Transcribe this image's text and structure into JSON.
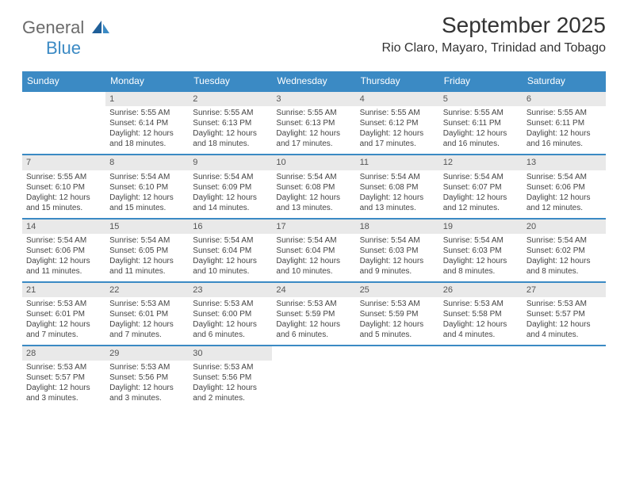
{
  "logo": {
    "part1": "General",
    "part2": "Blue"
  },
  "title": "September 2025",
  "subtitle": "Rio Claro, Mayaro, Trinidad and Tobago",
  "colors": {
    "header_bg": "#3b8ac4",
    "header_text": "#ffffff",
    "date_bg": "#e9e9e9",
    "text": "#333333",
    "logo_gray": "#6b6b6b",
    "logo_blue": "#3b8ac4"
  },
  "day_names": [
    "Sunday",
    "Monday",
    "Tuesday",
    "Wednesday",
    "Thursday",
    "Friday",
    "Saturday"
  ],
  "weeks": [
    [
      {
        "date": "",
        "sunrise": "",
        "sunset": "",
        "daylight": ""
      },
      {
        "date": "1",
        "sunrise": "Sunrise: 5:55 AM",
        "sunset": "Sunset: 6:14 PM",
        "daylight": "Daylight: 12 hours and 18 minutes."
      },
      {
        "date": "2",
        "sunrise": "Sunrise: 5:55 AM",
        "sunset": "Sunset: 6:13 PM",
        "daylight": "Daylight: 12 hours and 18 minutes."
      },
      {
        "date": "3",
        "sunrise": "Sunrise: 5:55 AM",
        "sunset": "Sunset: 6:13 PM",
        "daylight": "Daylight: 12 hours and 17 minutes."
      },
      {
        "date": "4",
        "sunrise": "Sunrise: 5:55 AM",
        "sunset": "Sunset: 6:12 PM",
        "daylight": "Daylight: 12 hours and 17 minutes."
      },
      {
        "date": "5",
        "sunrise": "Sunrise: 5:55 AM",
        "sunset": "Sunset: 6:11 PM",
        "daylight": "Daylight: 12 hours and 16 minutes."
      },
      {
        "date": "6",
        "sunrise": "Sunrise: 5:55 AM",
        "sunset": "Sunset: 6:11 PM",
        "daylight": "Daylight: 12 hours and 16 minutes."
      }
    ],
    [
      {
        "date": "7",
        "sunrise": "Sunrise: 5:55 AM",
        "sunset": "Sunset: 6:10 PM",
        "daylight": "Daylight: 12 hours and 15 minutes."
      },
      {
        "date": "8",
        "sunrise": "Sunrise: 5:54 AM",
        "sunset": "Sunset: 6:10 PM",
        "daylight": "Daylight: 12 hours and 15 minutes."
      },
      {
        "date": "9",
        "sunrise": "Sunrise: 5:54 AM",
        "sunset": "Sunset: 6:09 PM",
        "daylight": "Daylight: 12 hours and 14 minutes."
      },
      {
        "date": "10",
        "sunrise": "Sunrise: 5:54 AM",
        "sunset": "Sunset: 6:08 PM",
        "daylight": "Daylight: 12 hours and 13 minutes."
      },
      {
        "date": "11",
        "sunrise": "Sunrise: 5:54 AM",
        "sunset": "Sunset: 6:08 PM",
        "daylight": "Daylight: 12 hours and 13 minutes."
      },
      {
        "date": "12",
        "sunrise": "Sunrise: 5:54 AM",
        "sunset": "Sunset: 6:07 PM",
        "daylight": "Daylight: 12 hours and 12 minutes."
      },
      {
        "date": "13",
        "sunrise": "Sunrise: 5:54 AM",
        "sunset": "Sunset: 6:06 PM",
        "daylight": "Daylight: 12 hours and 12 minutes."
      }
    ],
    [
      {
        "date": "14",
        "sunrise": "Sunrise: 5:54 AM",
        "sunset": "Sunset: 6:06 PM",
        "daylight": "Daylight: 12 hours and 11 minutes."
      },
      {
        "date": "15",
        "sunrise": "Sunrise: 5:54 AM",
        "sunset": "Sunset: 6:05 PM",
        "daylight": "Daylight: 12 hours and 11 minutes."
      },
      {
        "date": "16",
        "sunrise": "Sunrise: 5:54 AM",
        "sunset": "Sunset: 6:04 PM",
        "daylight": "Daylight: 12 hours and 10 minutes."
      },
      {
        "date": "17",
        "sunrise": "Sunrise: 5:54 AM",
        "sunset": "Sunset: 6:04 PM",
        "daylight": "Daylight: 12 hours and 10 minutes."
      },
      {
        "date": "18",
        "sunrise": "Sunrise: 5:54 AM",
        "sunset": "Sunset: 6:03 PM",
        "daylight": "Daylight: 12 hours and 9 minutes."
      },
      {
        "date": "19",
        "sunrise": "Sunrise: 5:54 AM",
        "sunset": "Sunset: 6:03 PM",
        "daylight": "Daylight: 12 hours and 8 minutes."
      },
      {
        "date": "20",
        "sunrise": "Sunrise: 5:54 AM",
        "sunset": "Sunset: 6:02 PM",
        "daylight": "Daylight: 12 hours and 8 minutes."
      }
    ],
    [
      {
        "date": "21",
        "sunrise": "Sunrise: 5:53 AM",
        "sunset": "Sunset: 6:01 PM",
        "daylight": "Daylight: 12 hours and 7 minutes."
      },
      {
        "date": "22",
        "sunrise": "Sunrise: 5:53 AM",
        "sunset": "Sunset: 6:01 PM",
        "daylight": "Daylight: 12 hours and 7 minutes."
      },
      {
        "date": "23",
        "sunrise": "Sunrise: 5:53 AM",
        "sunset": "Sunset: 6:00 PM",
        "daylight": "Daylight: 12 hours and 6 minutes."
      },
      {
        "date": "24",
        "sunrise": "Sunrise: 5:53 AM",
        "sunset": "Sunset: 5:59 PM",
        "daylight": "Daylight: 12 hours and 6 minutes."
      },
      {
        "date": "25",
        "sunrise": "Sunrise: 5:53 AM",
        "sunset": "Sunset: 5:59 PM",
        "daylight": "Daylight: 12 hours and 5 minutes."
      },
      {
        "date": "26",
        "sunrise": "Sunrise: 5:53 AM",
        "sunset": "Sunset: 5:58 PM",
        "daylight": "Daylight: 12 hours and 4 minutes."
      },
      {
        "date": "27",
        "sunrise": "Sunrise: 5:53 AM",
        "sunset": "Sunset: 5:57 PM",
        "daylight": "Daylight: 12 hours and 4 minutes."
      }
    ],
    [
      {
        "date": "28",
        "sunrise": "Sunrise: 5:53 AM",
        "sunset": "Sunset: 5:57 PM",
        "daylight": "Daylight: 12 hours and 3 minutes."
      },
      {
        "date": "29",
        "sunrise": "Sunrise: 5:53 AM",
        "sunset": "Sunset: 5:56 PM",
        "daylight": "Daylight: 12 hours and 3 minutes."
      },
      {
        "date": "30",
        "sunrise": "Sunrise: 5:53 AM",
        "sunset": "Sunset: 5:56 PM",
        "daylight": "Daylight: 12 hours and 2 minutes."
      },
      {
        "date": "",
        "sunrise": "",
        "sunset": "",
        "daylight": ""
      },
      {
        "date": "",
        "sunrise": "",
        "sunset": "",
        "daylight": ""
      },
      {
        "date": "",
        "sunrise": "",
        "sunset": "",
        "daylight": ""
      },
      {
        "date": "",
        "sunrise": "",
        "sunset": "",
        "daylight": ""
      }
    ]
  ]
}
